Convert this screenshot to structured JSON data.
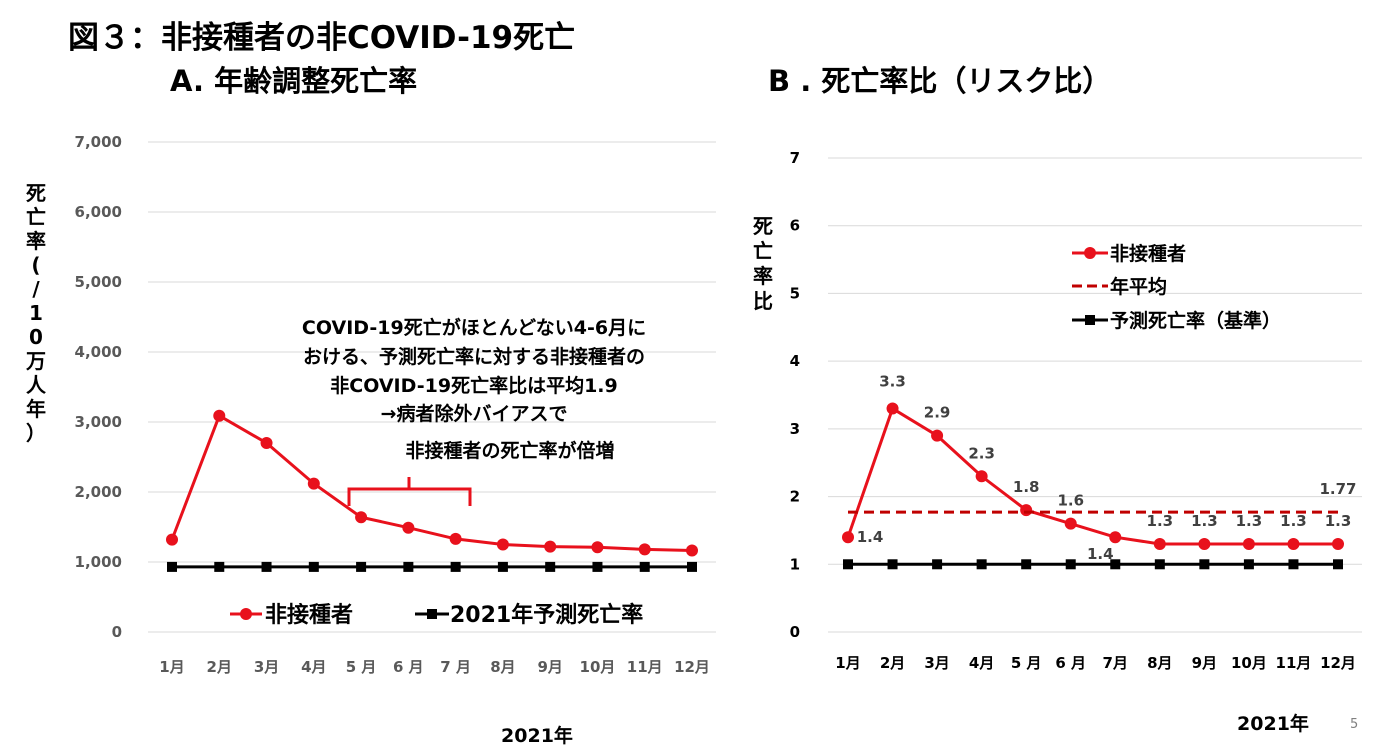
{
  "page": {
    "main_title": "図３：非接種者の非COVID-19死亡",
    "title_a": "A. 年齢調整死亡率",
    "title_b": "B . 死亡率比（リスク比）",
    "page_number": "5"
  },
  "colors": {
    "red": "#e8111c",
    "darkred": "#c00000",
    "black": "#000000",
    "grid": "#d9d9d9"
  },
  "chart_data": [
    {
      "type": "line",
      "categories": [
        "1月",
        "2月",
        "3月",
        "4月",
        "5 月",
        "6 月",
        "7 月",
        "8月",
        "9月",
        "10月",
        "11月",
        "12月"
      ],
      "series": [
        {
          "name": "非接種者",
          "values": [
            1320,
            3090,
            2700,
            2120,
            1640,
            1490,
            1330,
            1250,
            1220,
            1210,
            1180,
            1165
          ],
          "color": "#e8111c",
          "marker": "circle"
        },
        {
          "name": "2021年予測死亡率",
          "values": [
            930,
            930,
            930,
            930,
            930,
            930,
            930,
            930,
            930,
            930,
            930,
            930
          ],
          "color": "#000000",
          "marker": "square"
        }
      ],
      "yticks": [
        "0",
        "1,000",
        "2,000",
        "3,000",
        "4,000",
        "5,000",
        "6,000",
        "7,000"
      ],
      "ylim": [
        0,
        7000
      ],
      "ylabel": "死亡率(/10万人年）",
      "xlabel": "2021年",
      "annotation": [
        "COVID-19死亡がほとんどない4-6月に",
        "おける、予測死亡率に対する非接種者の",
        "非COVID-19死亡率比は平均1.9",
        "→病者除外バイアスで",
        "非接種者の死亡率が倍増"
      ],
      "grid": true,
      "legend_position": "bottom"
    },
    {
      "type": "line",
      "categories": [
        "1月",
        "2月",
        "3月",
        "4月",
        "5 月",
        "6 月",
        "7月",
        "8月",
        "9月",
        "10月",
        "11月",
        "12月"
      ],
      "series": [
        {
          "name": "非接種者",
          "values": [
            1.4,
            3.3,
            2.9,
            2.3,
            1.8,
            1.6,
            1.4,
            1.3,
            1.3,
            1.3,
            1.3,
            1.3
          ],
          "labels": [
            "1.4",
            "3.3",
            "2.9",
            "2.3",
            "1.8",
            "1.6",
            "1.4",
            "1.3",
            "1.3",
            "1.3",
            "1.3",
            "1.3"
          ],
          "color": "#e8111c",
          "marker": "circle"
        },
        {
          "name": "年平均",
          "values": [
            1.77,
            1.77,
            1.77,
            1.77,
            1.77,
            1.77,
            1.77,
            1.77,
            1.77,
            1.77,
            1.77,
            1.77
          ],
          "color": "#c00000",
          "style": "dashed",
          "end_label": "1.77"
        },
        {
          "name": "予測死亡率（基準）",
          "values": [
            1,
            1,
            1,
            1,
            1,
            1,
            1,
            1,
            1,
            1,
            1,
            1
          ],
          "color": "#000000",
          "marker": "square"
        }
      ],
      "yticks": [
        "0",
        "1",
        "2",
        "3",
        "4",
        "5",
        "6",
        "7"
      ],
      "ylim": [
        0,
        7
      ],
      "ylabel": "死亡率比",
      "xlabel": "2021年",
      "grid": true,
      "legend_position": "top-right"
    }
  ]
}
